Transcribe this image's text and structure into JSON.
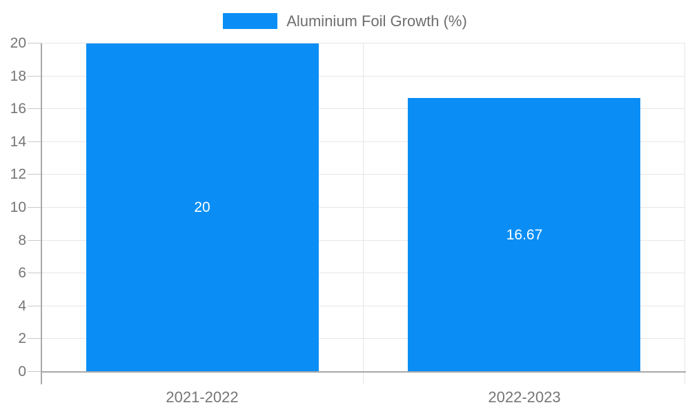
{
  "chart_data": {
    "type": "bar",
    "title": "",
    "legend": {
      "label": "Aluminium Foil Growth (%)",
      "position": "top"
    },
    "categories": [
      "2021-2022",
      "2022-2023"
    ],
    "series": [
      {
        "name": "Aluminium Foil Growth (%)",
        "values": [
          20,
          16.67
        ]
      }
    ],
    "value_labels": [
      "20",
      "16.67"
    ],
    "xlabel": "",
    "ylabel": "",
    "ylim": [
      0,
      20
    ],
    "yticks": [
      0,
      2,
      4,
      6,
      8,
      10,
      12,
      14,
      16,
      18,
      20
    ],
    "grid": true,
    "bar_label_position": "center",
    "colors": {
      "bar": "#0a8ef5",
      "gridline": "#e6e6e6",
      "axis_line": "#a8a8a8",
      "tick": "#c9c9c9",
      "label_text": "#757575",
      "legend_text": "#6e6e6e",
      "bar_label_text": "#ffffff",
      "background": "#ffffff"
    }
  }
}
